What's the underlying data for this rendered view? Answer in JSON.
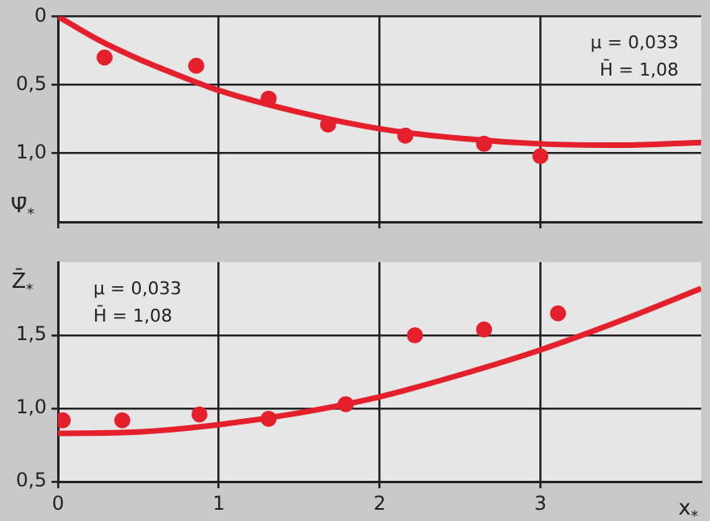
{
  "chart_data": [
    {
      "type": "scatter",
      "ylabel": "Ψ̄$_{*}$",
      "annotations": [
        "μ = 0,033",
        "H̄ = 1,08"
      ],
      "xlim": [
        0,
        4
      ],
      "xticks": [
        0,
        1,
        2,
        3
      ],
      "ylim": [
        1.5,
        0
      ],
      "yticks": [
        0,
        {
          "value": 0.5,
          "label": "0,5"
        },
        {
          "value": 1.0,
          "label": "1,0"
        }
      ],
      "grid": true,
      "legend": false,
      "tick_labels": "y",
      "series": [
        {
          "type": "scatter",
          "marker": "circle",
          "color": "#e3202b",
          "x": [
            0.29,
            0.86,
            1.31,
            1.68,
            2.16,
            2.65,
            3.0
          ],
          "values": [
            0.3,
            0.36,
            0.6,
            0.79,
            0.87,
            0.93,
            1.02
          ]
        },
        {
          "type": "line",
          "color": "#e3202b",
          "line_style": "solid",
          "x": [
            0,
            0.25,
            0.5,
            0.75,
            1,
            1.5,
            2,
            2.5,
            3,
            3.5,
            4
          ],
          "values": [
            0,
            0.17,
            0.31,
            0.43,
            0.54,
            0.7,
            0.82,
            0.89,
            0.93,
            0.94,
            0.92
          ]
        }
      ]
    },
    {
      "type": "scatter",
      "ylabel": "Z̄$_{*}$",
      "xlabel": "x$_{*}$",
      "annotations": [
        "μ = 0,033",
        "H̄ = 1,08"
      ],
      "xlim": [
        0,
        4
      ],
      "xticks": [
        0,
        1,
        2,
        3
      ],
      "ylim": [
        0.5,
        2.0
      ],
      "yticks": [
        {
          "value": 0.5,
          "label": "0,5"
        },
        {
          "value": 1.0,
          "label": "1,0"
        },
        {
          "value": 1.5,
          "label": "1,5"
        }
      ],
      "grid": true,
      "legend": false,
      "series": [
        {
          "type": "scatter",
          "marker": "circle",
          "color": "#e3202b",
          "x": [
            0.03,
            0.4,
            0.88,
            1.31,
            1.79,
            2.22,
            2.65,
            3.11
          ],
          "values": [
            0.92,
            0.92,
            0.96,
            0.93,
            1.03,
            1.5,
            1.54,
            1.65
          ]
        },
        {
          "type": "line",
          "color": "#e3202b",
          "line_style": "solid",
          "x": [
            0,
            0.5,
            1,
            1.5,
            2,
            2.5,
            3,
            3.5,
            4
          ],
          "values": [
            0.83,
            0.84,
            0.89,
            0.97,
            1.08,
            1.23,
            1.4,
            1.6,
            1.82
          ]
        }
      ]
    }
  ]
}
